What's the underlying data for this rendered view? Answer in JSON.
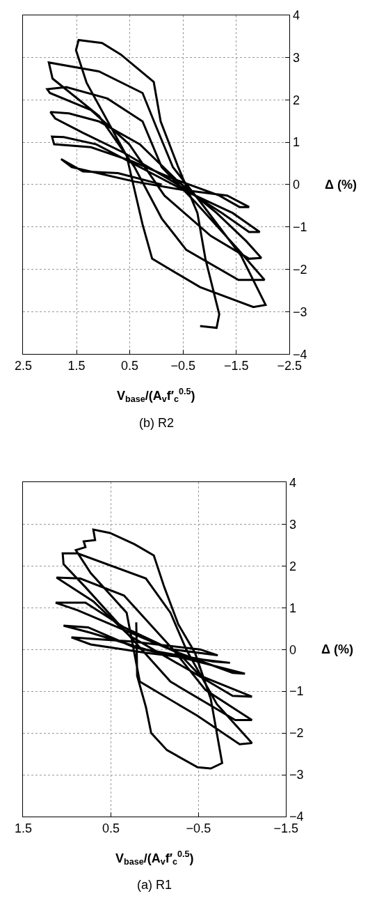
{
  "chart_data": [
    {
      "type": "line",
      "title": "(b) R2",
      "ylabel": "Δ (%)",
      "xlabel": "V$_{base}$/(A$_{v}$f′$_{c}$$^{0.5}$)",
      "ylim": [
        -4,
        4
      ],
      "yticks": [
        -4,
        -3,
        -2,
        -1,
        0,
        1,
        2,
        3,
        4
      ],
      "xlim": [
        2.5,
        -2.5
      ],
      "xticks": [
        2.5,
        1.5,
        0.5,
        -0.5,
        -1.5,
        -2.5
      ],
      "grid": true,
      "color": "#000000",
      "values": [
        0,
        0.27,
        0.31,
        0.6,
        0.41,
        0.07,
        -0.13,
        -0.26,
        -0.43,
        -0.53,
        -0.53,
        -0.26,
        0.14,
        0.55,
        0.88,
        0.95,
        1.13,
        1.12,
        0.95,
        0.34,
        -0.13,
        -0.67,
        -1.12,
        -1.12,
        -0.67,
        0.07,
        0.75,
        1.22,
        1.56,
        1.71,
        1.68,
        1.49,
        0.95,
        0.07,
        -0.67,
        -1.34,
        -1.73,
        -1.75,
        -1.21,
        -0.26,
        0.95,
        1.76,
        2.16,
        2.25,
        2.3,
        2.03,
        1.49,
        0.41,
        -0.4,
        -1.54,
        -2.25,
        -2.25,
        -1.54,
        -0.8,
        0.41,
        1.62,
        2.5,
        2.88,
        2.67,
        2.16,
        1.35,
        0.41,
        -0.4,
        -1.68,
        -2.84,
        -2.89,
        -2.42,
        -1.75,
        -0.94,
        0.68,
        2.4,
        3.17,
        3.41,
        3.34,
        3.07,
        2.42,
        1.49,
        0.41,
        -0.67,
        -1.75,
        -3.06,
        -3.38,
        -3.34
      ],
      "x": [
        -0.1,
        0.72,
        1.38,
        1.79,
        1.59,
        0.41,
        -0.51,
        -1.33,
        -1.59,
        -1.74,
        -1.56,
        -1.18,
        -0.31,
        0.46,
        1.23,
        1.92,
        1.96,
        1.74,
        1.13,
        0.2,
        -0.51,
        -1.43,
        -1.94,
        -1.74,
        -1.23,
        -0.31,
        0.61,
        1.38,
        1.9,
        1.99,
        1.64,
        1.08,
        0.31,
        -0.41,
        -1.13,
        -1.69,
        -1.97,
        -1.74,
        -1.02,
        -0.15,
        0.51,
        1.23,
        2.0,
        2.05,
        1.69,
        0.92,
        0.26,
        -0.1,
        -0.72,
        -1.54,
        -2.03,
        -1.54,
        -0.56,
        -0.1,
        0.41,
        1.08,
        1.95,
        2.02,
        1.08,
        0.26,
        0.0,
        -0.31,
        -0.82,
        -1.59,
        -2.05,
        -1.82,
        -0.82,
        0.08,
        0.26,
        0.56,
        1.31,
        1.51,
        1.46,
        1.02,
        0.67,
        0.05,
        -0.08,
        -0.41,
        -0.77,
        -0.92,
        -1.18,
        -1.13,
        -0.82
      ]
    },
    {
      "type": "line",
      "title": "(a) R1",
      "ylabel": "Δ (%)",
      "xlabel": "V$_{base}$/(A$_{v}$f′$_{c}$$^{0.5}$)",
      "ylim": [
        -4,
        4
      ],
      "yticks": [
        -4,
        -3,
        -2,
        -1,
        0,
        1,
        2,
        3,
        4
      ],
      "xlim": [
        1.5,
        -1.5
      ],
      "xticks": [
        1.5,
        0.5,
        -0.5,
        -1.5
      ],
      "grid": true,
      "color": "#000000",
      "values": [
        0,
        -0.14,
        0,
        0.19,
        0.26,
        0.29,
        0.12,
        -0.08,
        -0.32,
        -0.29,
        0,
        0.4,
        0.57,
        0.53,
        0.05,
        -0.22,
        -0.58,
        -0.56,
        -0.08,
        0.47,
        0.94,
        1.12,
        1.12,
        0.53,
        -0.08,
        -0.63,
        -1.13,
        -1.11,
        -0.49,
        0.33,
        1.15,
        1.72,
        1.7,
        1.29,
        0,
        -0.97,
        -1.69,
        -1.69,
        -0.77,
        0.47,
        1.49,
        2.04,
        2.3,
        2.3,
        1.7,
        0.88,
        0,
        -1.31,
        -2.24,
        -2.27,
        -1.59,
        -0.77,
        0.88,
        1.83,
        2.38,
        2.45,
        2.59,
        2.62,
        2.87,
        2.79,
        2.52,
        2.25,
        1.49,
        0.6,
        -0.08,
        -1.18,
        -2.72,
        -2.85,
        -2.82,
        -2.41,
        -2.0,
        -1.38,
        -0.63,
        0.65
      ],
      "x": [
        -0.21,
        -0.72,
        -0.52,
        0.26,
        0.76,
        0.95,
        0.73,
        0.1,
        -0.86,
        -0.67,
        0.1,
        0.73,
        1.04,
        0.76,
        0.23,
        -0.36,
        -1.03,
        -0.89,
        -0.27,
        0.35,
        0.88,
        1.13,
        0.79,
        0.35,
        -0.27,
        -0.52,
        -1.11,
        -0.89,
        -0.39,
        0.29,
        0.7,
        1.12,
        0.85,
        0.35,
        -0.21,
        -0.58,
        -1.11,
        -0.92,
        -0.18,
        0.35,
        0.79,
        1.04,
        1.05,
        0.88,
        0.1,
        -0.18,
        -0.36,
        -0.71,
        -1.11,
        -0.97,
        -0.49,
        0.17,
        0.32,
        0.73,
        0.9,
        0.79,
        0.81,
        0.68,
        0.7,
        0.51,
        0.23,
        0.01,
        -0.11,
        -0.27,
        -0.46,
        -0.64,
        -0.77,
        -0.64,
        -0.49,
        -0.14,
        0.04,
        0.1,
        0.2,
        0.21
      ]
    }
  ]
}
